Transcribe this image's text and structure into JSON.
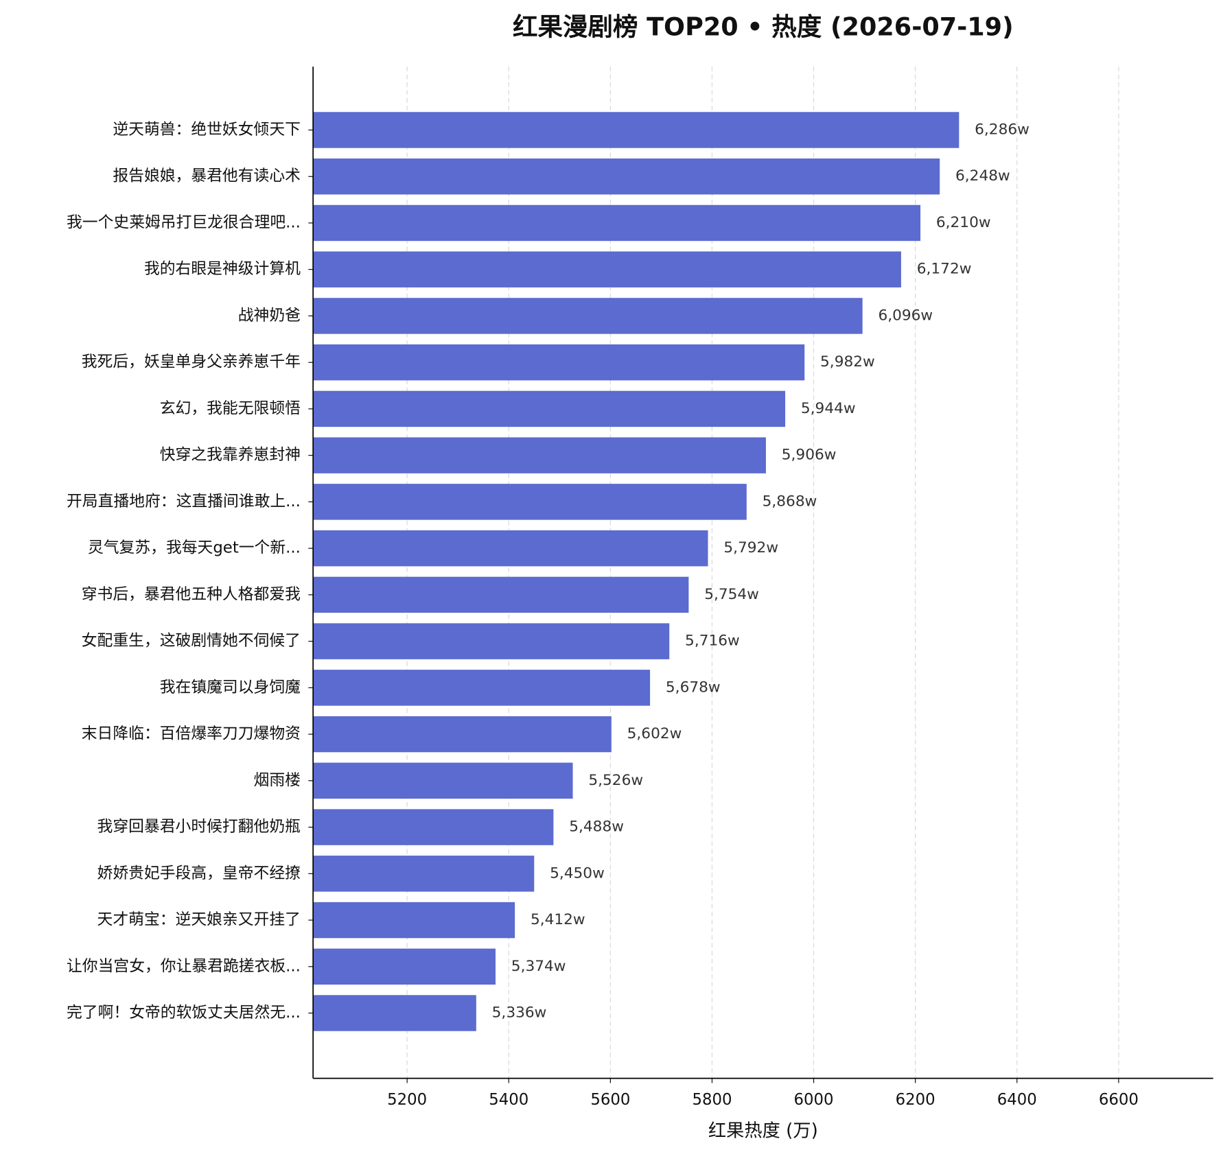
{
  "chart_data": {
    "type": "barh",
    "title": "红果漫剧榜 TOP20 • 热度 (2026-07-19)",
    "xlabel": "红果热度 (万)",
    "categories": [
      "逆天萌兽：绝世妖女倾天下",
      "报告娘娘，暴君他有读心术",
      "我一个史莱姆吊打巨龙很合理吧...",
      "我的右眼是神级计算机",
      "战神奶爸",
      "我死后，妖皇单身父亲养崽千年",
      "玄幻，我能无限顿悟",
      "快穿之我靠养崽封神",
      "开局直播地府：这直播间谁敢上...",
      "灵气复苏，我每天get一个新...",
      "穿书后，暴君他五种人格都爱我",
      "女配重生，这破剧情她不伺候了",
      "我在镇魔司以身饲魔",
      "末日降临：百倍爆率刀刀爆物资",
      "烟雨楼",
      "我穿回暴君小时候打翻他奶瓶",
      "娇娇贵妃手段高，皇帝不经撩",
      "天才萌宝：逆天娘亲又开挂了",
      "让你当宫女，你让暴君跪搓衣板...",
      "完了啊！女帝的软饭丈夫居然无..."
    ],
    "values": [
      6286,
      6248,
      6210,
      6172,
      6096,
      5982,
      5944,
      5906,
      5868,
      5792,
      5754,
      5716,
      5678,
      5602,
      5526,
      5488,
      5450,
      5412,
      5374,
      5336
    ],
    "value_labels": [
      "6,286w",
      "6,248w",
      "6,210w",
      "6,172w",
      "6,096w",
      "5,982w",
      "5,944w",
      "5,906w",
      "5,868w",
      "5,792w",
      "5,754w",
      "5,716w",
      "5,678w",
      "5,602w",
      "5,526w",
      "5,488w",
      "5,450w",
      "5,412w",
      "5,374w",
      "5,336w"
    ],
    "color": "#5b6bcf",
    "xlim": [
      5015,
      6786
    ],
    "xticks": [
      5200,
      5400,
      5600,
      5800,
      6000,
      6200,
      6400,
      6600
    ],
    "grid": true
  }
}
